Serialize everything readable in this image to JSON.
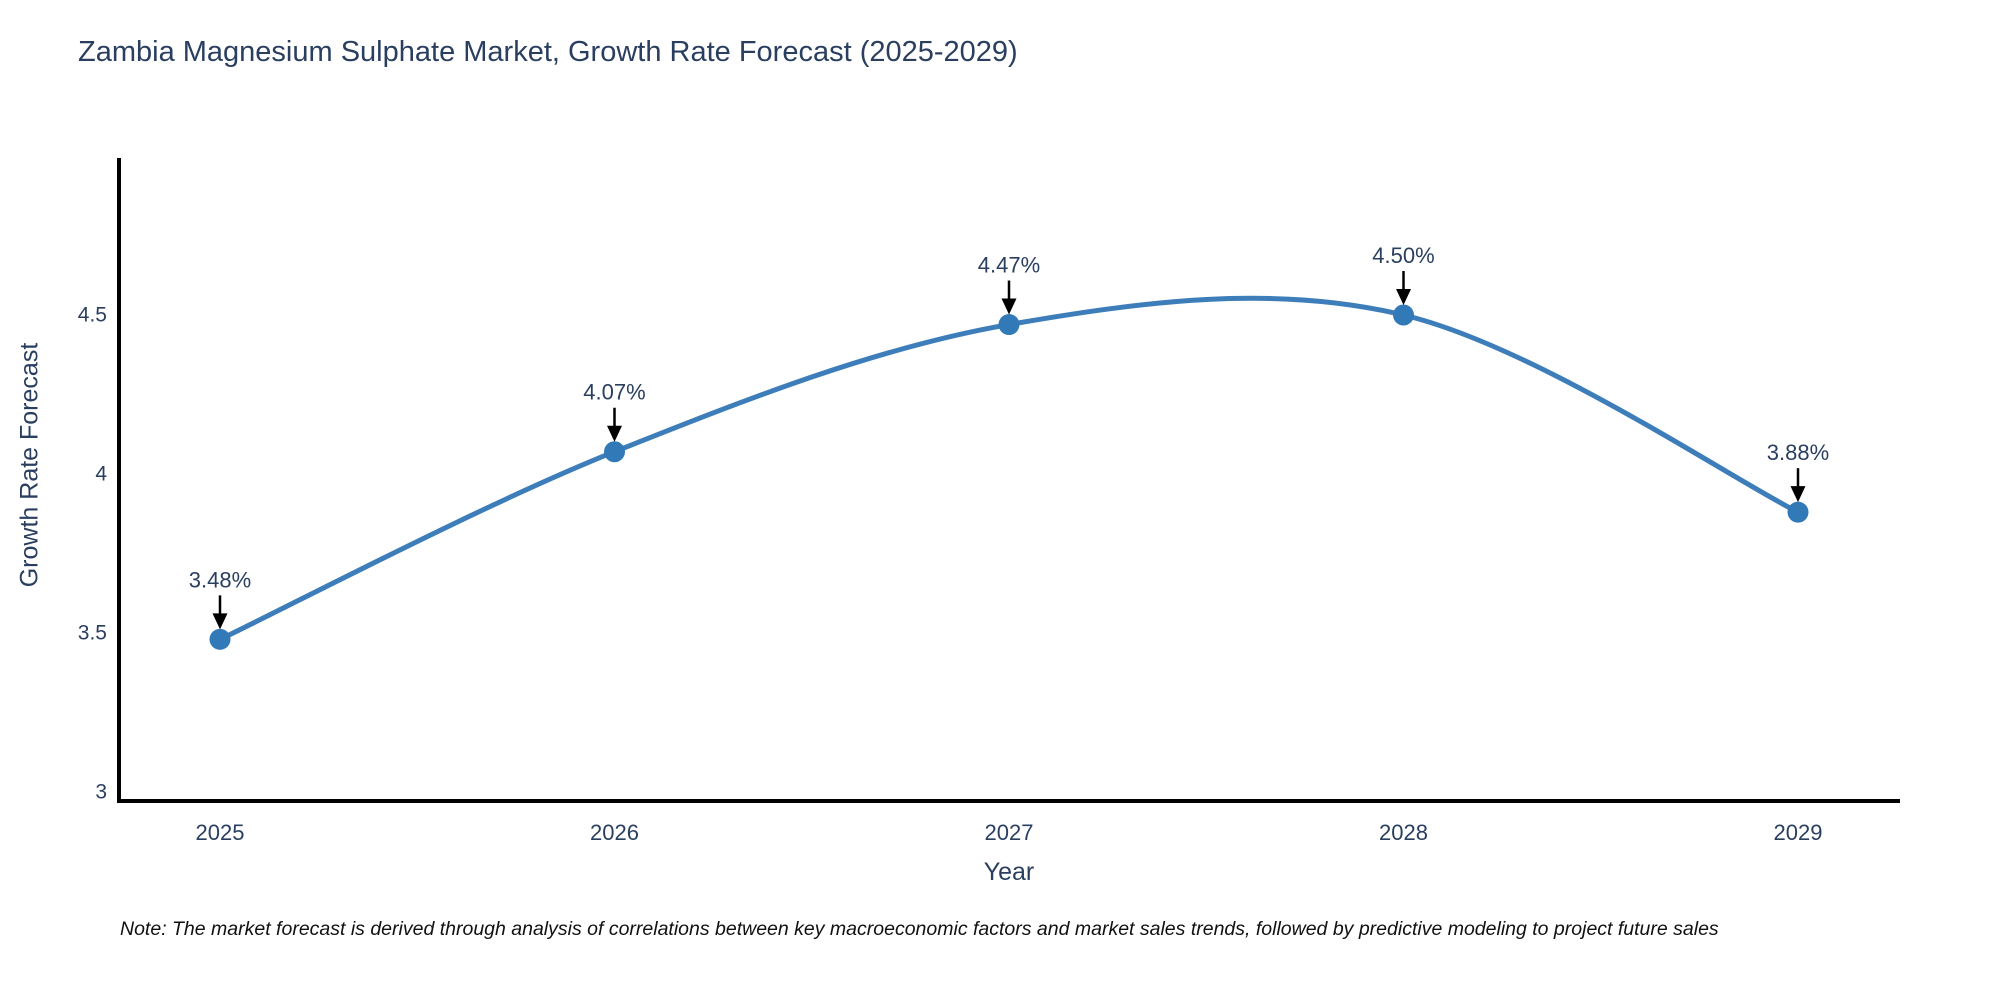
{
  "note": "Note: The market forecast is derived through analysis of correlations between key macroeconomic factors and market sales trends, followed by predictive modeling to project future sales",
  "colors": {
    "line": "#3d7eba",
    "marker": "#3279b8",
    "text": "#2a3f5f",
    "axis": "#000000",
    "annotation_arrow": "#000000",
    "note_text": "#111111",
    "background": "#ffffff"
  },
  "chart_data": {
    "type": "line",
    "title": "Zambia Magnesium Sulphate Market, Growth Rate Forecast (2025-2029)",
    "xlabel": "Year",
    "ylabel": "Growth Rate Forecast",
    "categories": [
      "2025",
      "2026",
      "2027",
      "2028",
      "2029"
    ],
    "series": [
      {
        "name": "Growth Rate Forecast",
        "values": [
          3.48,
          4.07,
          4.47,
          4.5,
          3.88
        ],
        "point_labels": [
          "3.48%",
          "4.07%",
          "4.47%",
          "4.50%",
          "3.88%"
        ]
      }
    ],
    "yticks": [
      {
        "value": 3,
        "label": "3"
      },
      {
        "value": 3.5,
        "label": "3.5"
      },
      {
        "value": 4,
        "label": "4"
      },
      {
        "value": 4.5,
        "label": "4.5"
      }
    ],
    "ylim": [
      3,
      5
    ],
    "line_shape": "spline",
    "markers": true,
    "grid": false,
    "legend": "none",
    "annotations": "value labels with down arrows above each point"
  }
}
